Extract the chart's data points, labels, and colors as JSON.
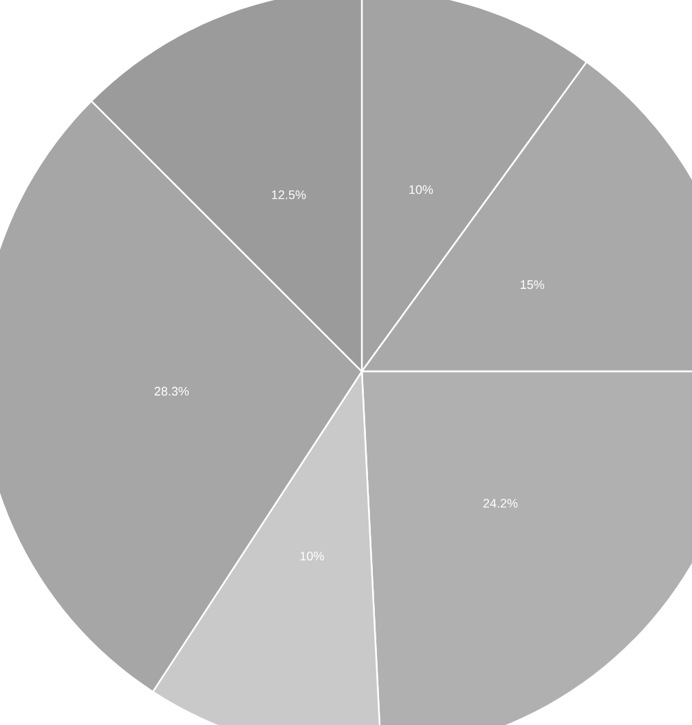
{
  "chart_data": {
    "type": "pie",
    "categories": [
      null,
      null,
      null,
      null,
      null,
      null
    ],
    "values": [
      10,
      15,
      24.2,
      10,
      28.3,
      12.5
    ],
    "value_labels": [
      "10%",
      "15%",
      "24.2%",
      "10%",
      "28.3%",
      "12.5%"
    ],
    "colors": [
      "#a3a3a3",
      "#a9a9a9",
      "#b0b0b0",
      "#c9c9c9",
      "#a6a6a6",
      "#9b9b9b"
    ]
  }
}
